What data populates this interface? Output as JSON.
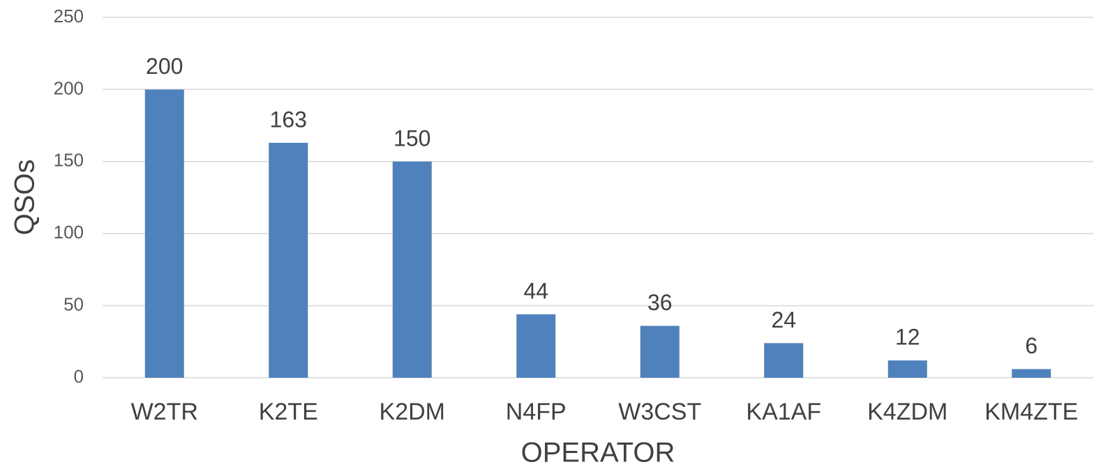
{
  "chart_data": {
    "type": "bar",
    "x_label": "OPERATOR",
    "y_label": "QSOs",
    "categories": [
      "W2TR",
      "K2TE",
      "K2DM",
      "N4FP",
      "W3CST",
      "KA1AF",
      "K4ZDM",
      "KM4ZTE"
    ],
    "values": [
      200,
      163,
      150,
      44,
      36,
      24,
      12,
      6
    ],
    "color": "#4f81bd",
    "ylim": [
      0,
      250
    ],
    "yticks": [
      0,
      50,
      100,
      150,
      200,
      250
    ],
    "grid": true
  }
}
